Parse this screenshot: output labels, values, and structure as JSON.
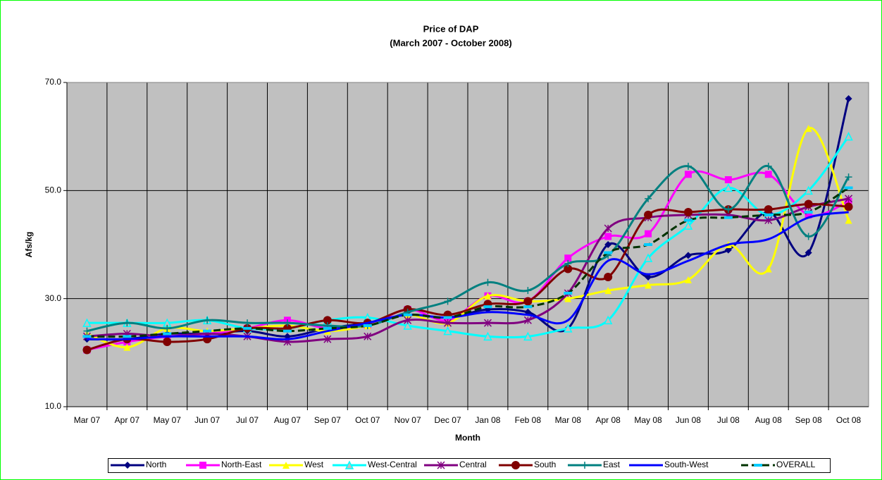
{
  "chart_data": {
    "type": "line",
    "title": "Price of DAP",
    "subtitle": "(March 2007 - October 2008)",
    "x_label": "Month",
    "y_label": "Afs/kg",
    "categories": [
      "Mar 07",
      "Apr 07",
      "May 07",
      "Jun 07",
      "Jul 07",
      "Aug 07",
      "Sep 07",
      "Oct 07",
      "Nov 07",
      "Dec 07",
      "Jan 08",
      "Feb 08",
      "Mar 08",
      "Apr 08",
      "May 08",
      "Jun 08",
      "Jul 08",
      "Aug 08",
      "Sep 08",
      "Oct 08"
    ],
    "ylim": [
      10,
      70
    ],
    "yticks": [
      {
        "value": 10,
        "label": "10.0"
      },
      {
        "value": 30,
        "label": "30.0"
      },
      {
        "value": 50,
        "label": "50.0"
      },
      {
        "value": 70,
        "label": "70.0"
      }
    ],
    "grid": true,
    "legend": "bottom",
    "series": [
      {
        "name": "North",
        "color": "#000080",
        "marker": "diamond",
        "values": [
          22.5,
          22.5,
          23.5,
          23.5,
          24,
          23,
          24.5,
          25.5,
          27,
          26.5,
          28,
          27.5,
          24.5,
          40,
          34,
          38,
          39,
          46,
          38.5,
          67
        ]
      },
      {
        "name": "North-East",
        "color": "#FF00FF",
        "marker": "square",
        "values": [
          20.5,
          22,
          23,
          23.5,
          24.5,
          26,
          24.5,
          25,
          28,
          26,
          30.5,
          29.5,
          37.5,
          41.5,
          42,
          53,
          52,
          53,
          45.5,
          48
        ]
      },
      {
        "name": "West",
        "color": "#FFFF00",
        "marker": "triangle",
        "values": [
          23.5,
          21,
          24.5,
          24,
          24.5,
          25,
          24,
          25,
          27,
          25.5,
          30.5,
          29.5,
          30,
          31.5,
          32.5,
          33.5,
          40,
          35.5,
          61.5,
          44.5
        ]
      },
      {
        "name": "West-Central",
        "color": "#00FFFF",
        "marker": "open-triangle",
        "values": [
          25.5,
          25.5,
          25.5,
          26,
          24.5,
          24.5,
          26,
          26.5,
          25,
          24,
          23,
          23,
          24.5,
          26,
          37.5,
          43.5,
          50.5,
          45.5,
          50,
          60
        ]
      },
      {
        "name": "Central",
        "color": "#800080",
        "marker": "asterisk",
        "values": [
          23,
          23.5,
          23,
          23.5,
          23,
          22,
          22.5,
          23,
          26,
          25.5,
          25.5,
          26,
          31,
          43,
          45,
          45.5,
          45.5,
          44.5,
          47,
          48.5
        ]
      },
      {
        "name": "South",
        "color": "#800000",
        "marker": "circle",
        "values": [
          20.5,
          22.5,
          22,
          22.5,
          24.5,
          24.5,
          26,
          25.5,
          28,
          27,
          29,
          29.5,
          35.5,
          34,
          45.5,
          46,
          46.5,
          46.5,
          47.5,
          47
        ]
      },
      {
        "name": "East",
        "color": "#008080",
        "marker": "plus",
        "values": [
          24,
          25.5,
          24.5,
          26,
          25.5,
          25.5,
          25,
          25,
          27.5,
          29.5,
          33,
          31.5,
          36.5,
          38,
          48.5,
          54.5,
          46.5,
          54.5,
          41.5,
          52.5
        ]
      },
      {
        "name": "South-West",
        "color": "#0000FF",
        "marker": "none",
        "values": [
          22.5,
          22.5,
          23,
          23,
          23,
          22.5,
          24,
          25.5,
          27,
          26.5,
          27.5,
          27,
          26,
          37,
          34.5,
          37,
          40,
          41,
          45,
          46
        ]
      },
      {
        "name": "OVERALL",
        "color": "#003300",
        "marker": "dash",
        "dashed": true,
        "values": [
          23,
          23,
          23.5,
          24,
          24.5,
          24,
          24.5,
          25,
          27,
          26.5,
          28.5,
          28.5,
          31,
          38.5,
          40,
          44.5,
          45,
          45.5,
          46,
          50.5
        ]
      }
    ]
  }
}
